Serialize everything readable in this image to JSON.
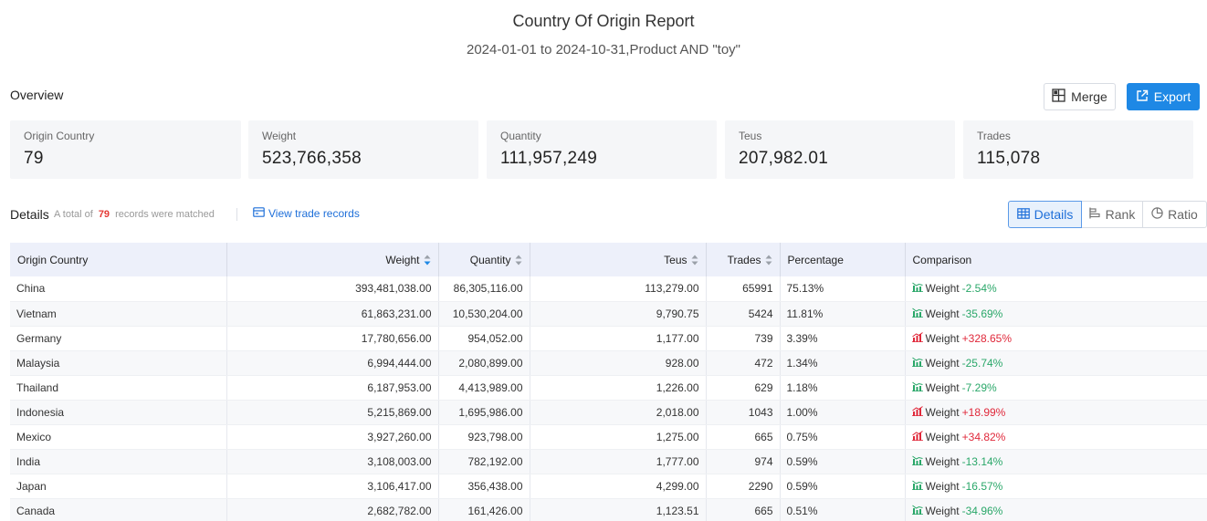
{
  "report": {
    "title": "Country Of Origin Report",
    "subtitle": "2024-01-01 to 2024-10-31,Product AND \"toy\""
  },
  "overview": {
    "label": "Overview",
    "merge_label": "Merge",
    "export_label": "Export",
    "stats": [
      {
        "label": "Origin Country",
        "value": "79"
      },
      {
        "label": "Weight",
        "value": "523,766,358"
      },
      {
        "label": "Quantity",
        "value": "111,957,249"
      },
      {
        "label": "Teus",
        "value": "207,982.01"
      },
      {
        "label": "Trades",
        "value": "115,078"
      }
    ]
  },
  "details": {
    "label": "Details",
    "total_prefix": "A total of",
    "total_count": "79",
    "total_suffix": "records were matched",
    "view_records": "View trade records",
    "views": {
      "details": "Details",
      "rank": "Rank",
      "ratio": "Ratio"
    }
  },
  "table": {
    "headers": {
      "country": "Origin Country",
      "weight": "Weight",
      "quantity": "Quantity",
      "teus": "Teus",
      "trades": "Trades",
      "percentage": "Percentage",
      "comparison": "Comparison"
    },
    "rows": [
      {
        "country": "China",
        "weight": "393,481,038.00",
        "quantity": "86,305,116.00",
        "teus": "113,279.00",
        "trades": "65991",
        "percentage": "75.13%",
        "cmp_label": "Weight",
        "cmp_value": "-2.54%",
        "cmp_dir": "down"
      },
      {
        "country": "Vietnam",
        "weight": "61,863,231.00",
        "quantity": "10,530,204.00",
        "teus": "9,790.75",
        "trades": "5424",
        "percentage": "11.81%",
        "cmp_label": "Weight",
        "cmp_value": "-35.69%",
        "cmp_dir": "down"
      },
      {
        "country": "Germany",
        "weight": "17,780,656.00",
        "quantity": "954,052.00",
        "teus": "1,177.00",
        "trades": "739",
        "percentage": "3.39%",
        "cmp_label": "Weight",
        "cmp_value": "+328.65%",
        "cmp_dir": "up"
      },
      {
        "country": "Malaysia",
        "weight": "6,994,444.00",
        "quantity": "2,080,899.00",
        "teus": "928.00",
        "trades": "472",
        "percentage": "1.34%",
        "cmp_label": "Weight",
        "cmp_value": "-25.74%",
        "cmp_dir": "down"
      },
      {
        "country": "Thailand",
        "weight": "6,187,953.00",
        "quantity": "4,413,989.00",
        "teus": "1,226.00",
        "trades": "629",
        "percentage": "1.18%",
        "cmp_label": "Weight",
        "cmp_value": "-7.29%",
        "cmp_dir": "down"
      },
      {
        "country": "Indonesia",
        "weight": "5,215,869.00",
        "quantity": "1,695,986.00",
        "teus": "2,018.00",
        "trades": "1043",
        "percentage": "1.00%",
        "cmp_label": "Weight",
        "cmp_value": "+18.99%",
        "cmp_dir": "up"
      },
      {
        "country": "Mexico",
        "weight": "3,927,260.00",
        "quantity": "923,798.00",
        "teus": "1,275.00",
        "trades": "665",
        "percentage": "0.75%",
        "cmp_label": "Weight",
        "cmp_value": "+34.82%",
        "cmp_dir": "up"
      },
      {
        "country": "India",
        "weight": "3,108,003.00",
        "quantity": "782,192.00",
        "teus": "1,777.00",
        "trades": "974",
        "percentage": "0.59%",
        "cmp_label": "Weight",
        "cmp_value": "-13.14%",
        "cmp_dir": "down"
      },
      {
        "country": "Japan",
        "weight": "3,106,417.00",
        "quantity": "356,438.00",
        "teus": "4,299.00",
        "trades": "2290",
        "percentage": "0.59%",
        "cmp_label": "Weight",
        "cmp_value": "-16.57%",
        "cmp_dir": "down"
      },
      {
        "country": "Canada",
        "weight": "2,682,782.00",
        "quantity": "161,426.00",
        "teus": "1,123.51",
        "trades": "665",
        "percentage": "0.51%",
        "cmp_label": "Weight",
        "cmp_value": "-34.96%",
        "cmp_dir": "down"
      }
    ]
  },
  "colors": {
    "accent": "#1e88e5",
    "positive": "#e0283a",
    "negative": "#2aa769",
    "header_bg": "#edf0fa"
  },
  "icons": {
    "merge": "merge-icon",
    "export": "export-icon",
    "records": "card-icon",
    "details": "table-icon",
    "rank": "bar-rank-icon",
    "ratio": "pie-icon",
    "trend_up": "trend-up-icon",
    "trend_down": "trend-down-icon"
  }
}
